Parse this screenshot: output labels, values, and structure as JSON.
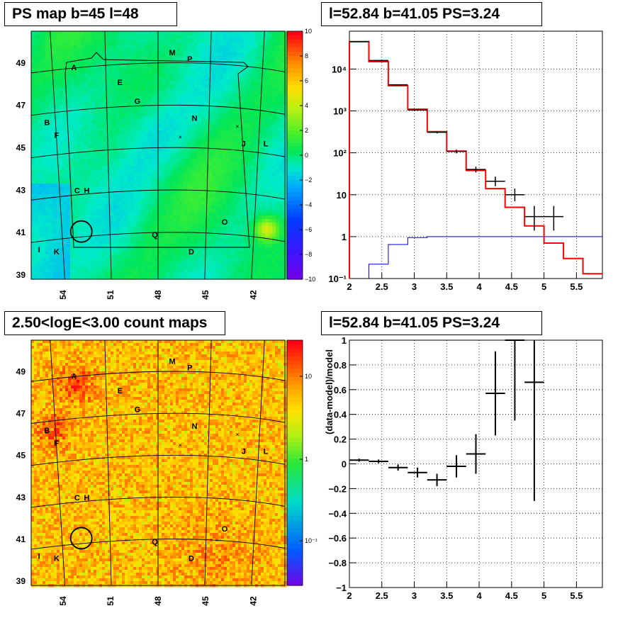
{
  "panels": {
    "ps_map": {
      "title": "PS map b=45 l=48",
      "colorbar_ticks": [
        "10",
        "8",
        "6",
        "4",
        "2",
        "0",
        "−2",
        "−4",
        "−6",
        "−8",
        "−10"
      ],
      "colorbar_range": [
        -10,
        10
      ],
      "x_ticks": [
        "54",
        "51",
        "48",
        "45",
        "42"
      ],
      "y_ticks": [
        "49",
        "47",
        "45",
        "43",
        "41",
        "39"
      ]
    },
    "spectrum": {
      "title": "l=52.84 b=41.05 PS=3.24",
      "x_ticks": [
        "2",
        "2.5",
        "3",
        "3.5",
        "4",
        "4.5",
        "5",
        "5.5"
      ],
      "y_ticks": [
        "10⁻¹",
        "1",
        "10",
        "10²",
        "10³",
        "10⁴"
      ]
    },
    "count_map": {
      "title": "2.50<logE<3.00 count maps",
      "colorbar_ticks": [
        "10",
        "1",
        "10⁻¹"
      ],
      "x_ticks": [
        "54",
        "51",
        "48",
        "45",
        "42"
      ],
      "y_ticks": [
        "49",
        "47",
        "45",
        "43",
        "41",
        "39"
      ]
    },
    "residual": {
      "title": "l=52.84 b=41.05 PS=3.24",
      "ylabel": "(data-model)/model",
      "x_ticks": [
        "2",
        "2.5",
        "3",
        "3.5",
        "4",
        "4.5",
        "5",
        "5.5"
      ],
      "y_ticks": [
        "1",
        "0.8",
        "0.6",
        "0.4",
        "0.2",
        "0",
        "−0.2",
        "−0.4",
        "−0.6",
        "−0.8",
        "−1"
      ]
    }
  },
  "source_labels": [
    "A",
    "B",
    "C",
    "H",
    "D",
    "E",
    "F",
    "G",
    "I",
    "K",
    "J",
    "L",
    "M",
    "N",
    "O",
    "P",
    "Q"
  ],
  "colors": {
    "model": "#ff0000",
    "data": "#000000",
    "background_model": "#0000cc",
    "grid": "#000000"
  },
  "chart_data": [
    {
      "type": "heatmap",
      "name": "ps_map",
      "xlim_deg": [
        56,
        40
      ],
      "ylim_deg": [
        38.8,
        50.5
      ],
      "z_range": [
        -10,
        10
      ],
      "markers": [
        {
          "label": "A",
          "l": 53.3,
          "b": 48.8
        },
        {
          "label": "B",
          "l": 55.0,
          "b": 46.2
        },
        {
          "label": "C",
          "l": 53.1,
          "b": 43.0
        },
        {
          "label": "H",
          "l": 52.5,
          "b": 43.0
        },
        {
          "label": "D",
          "l": 45.9,
          "b": 40.1
        },
        {
          "label": "E",
          "l": 50.4,
          "b": 48.1
        },
        {
          "label": "F",
          "l": 54.4,
          "b": 45.6
        },
        {
          "label": "G",
          "l": 49.3,
          "b": 47.2
        },
        {
          "label": "I",
          "l": 55.5,
          "b": 40.2
        },
        {
          "label": "K",
          "l": 54.4,
          "b": 40.1
        },
        {
          "label": "J",
          "l": 42.6,
          "b": 45.2
        },
        {
          "label": "L",
          "l": 41.2,
          "b": 45.2
        },
        {
          "label": "M",
          "l": 47.1,
          "b": 49.5
        },
        {
          "label": "N",
          "l": 45.7,
          "b": 46.4
        },
        {
          "label": "O",
          "l": 43.8,
          "b": 41.5
        },
        {
          "label": "P",
          "l": 46.0,
          "b": 49.2
        },
        {
          "label": "Q",
          "l": 48.2,
          "b": 40.9
        }
      ],
      "circle": {
        "l": 52.84,
        "b": 41.05
      }
    },
    {
      "type": "line",
      "name": "spectrum",
      "xlim": [
        2,
        5.9
      ],
      "ylim": [
        0.1,
        80000
      ],
      "log_y": true,
      "grid": true,
      "bin_edges": [
        2.0,
        2.3,
        2.6,
        2.9,
        3.2,
        3.5,
        3.8,
        4.1,
        4.4,
        4.7,
        5.0,
        5.3,
        5.6,
        5.9
      ],
      "series": [
        {
          "values": [
            45000,
            15000,
            4000,
            1100,
            320,
            110,
            38,
            14,
            5,
            1.8,
            0.7,
            0.3,
            0.13
          ]
        },
        {
          "values": [
            null,
            0.22,
            0.65,
            0.95,
            1.0,
            1.0,
            1.0,
            1.0,
            1.0,
            1.0,
            1.0,
            1.0,
            1.0
          ]
        }
      ],
      "data_points": [
        {
          "x": 2.15,
          "y": 45000,
          "ylo": 44500,
          "yhi": 45500
        },
        {
          "x": 2.45,
          "y": 16000,
          "ylo": 15700,
          "yhi": 16300
        },
        {
          "x": 2.75,
          "y": 4200,
          "ylo": 4100,
          "yhi": 4300
        },
        {
          "x": 3.05,
          "y": 1050,
          "ylo": 1010,
          "yhi": 1090
        },
        {
          "x": 3.35,
          "y": 310,
          "ylo": 290,
          "yhi": 330
        },
        {
          "x": 3.65,
          "y": 108,
          "ylo": 97,
          "yhi": 119
        },
        {
          "x": 3.95,
          "y": 40,
          "ylo": 34,
          "yhi": 47
        },
        {
          "x": 4.25,
          "y": 21,
          "ylo": 16,
          "yhi": 27
        },
        {
          "x": 4.55,
          "y": 10,
          "ylo": 7,
          "yhi": 14
        },
        {
          "x": 4.85,
          "y": 3,
          "ylo": 1.4,
          "yhi": 5.4
        },
        {
          "x": 5.15,
          "y": 3,
          "ylo": 1.4,
          "yhi": 5.4
        }
      ]
    },
    {
      "type": "heatmap",
      "name": "count_map",
      "xlim_deg": [
        56,
        40
      ],
      "ylim_deg": [
        38.8,
        50.5
      ],
      "z_range_log": [
        0.04,
        40
      ],
      "circle": {
        "l": 52.84,
        "b": 41.05
      }
    },
    {
      "type": "scatter",
      "name": "residual",
      "xlim": [
        2,
        5.9
      ],
      "ylim": [
        -1,
        1
      ],
      "grid": true,
      "points": [
        {
          "x": 2.15,
          "y": 0.03,
          "err": 0.012
        },
        {
          "x": 2.45,
          "y": 0.02,
          "err": 0.015
        },
        {
          "x": 2.75,
          "y": -0.03,
          "err": 0.025
        },
        {
          "x": 3.05,
          "y": -0.07,
          "err": 0.04
        },
        {
          "x": 3.35,
          "y": -0.13,
          "err": 0.05
        },
        {
          "x": 3.65,
          "y": -0.02,
          "err": 0.09
        },
        {
          "x": 3.95,
          "y": 0.08,
          "err": 0.16
        },
        {
          "x": 4.25,
          "y": 0.57,
          "err": 0.34
        },
        {
          "x": 4.55,
          "y": 1.0,
          "err": 0.65
        },
        {
          "x": 4.85,
          "y": 0.66,
          "err": 0.96
        }
      ]
    }
  ]
}
